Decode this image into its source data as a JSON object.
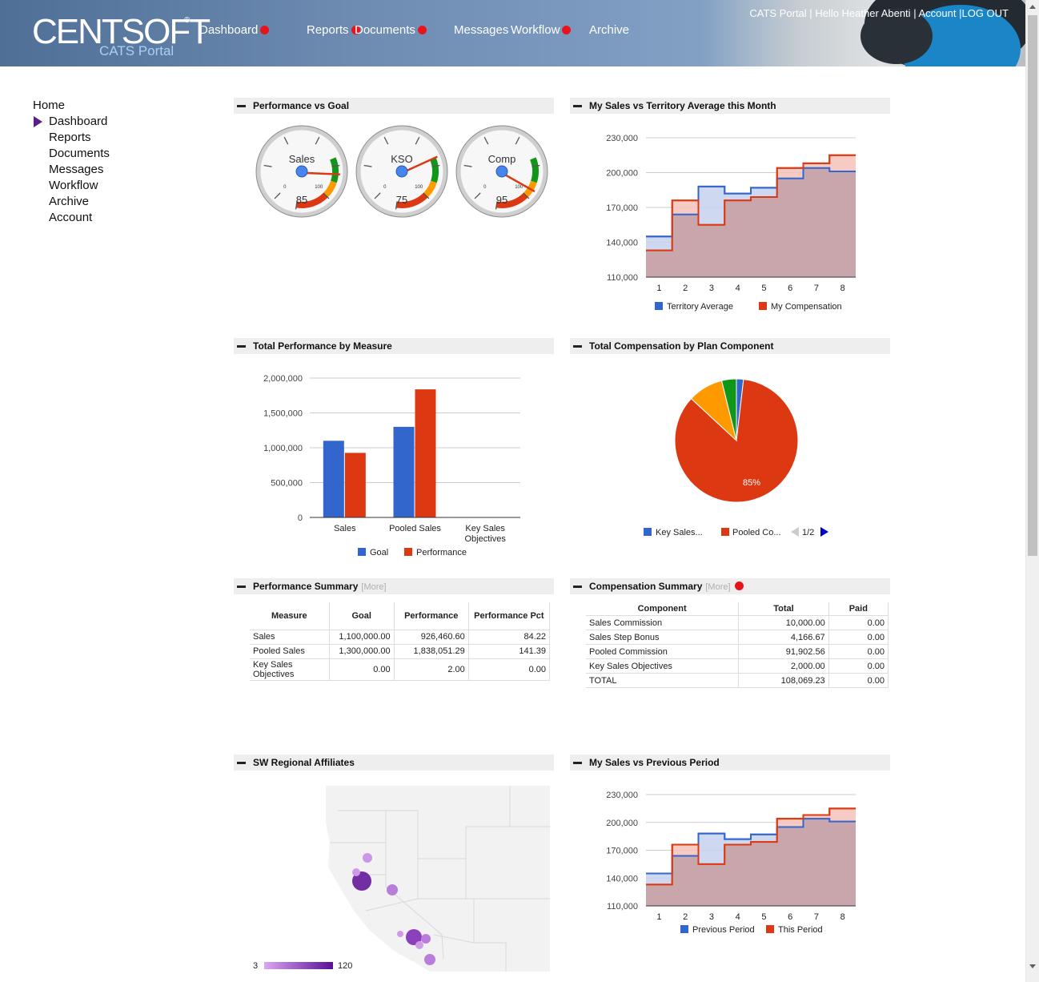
{
  "header": {
    "logo_main": "CENTSOFT",
    "logo_registered": "®",
    "logo_sub": "CATS Portal",
    "nav": [
      {
        "label": "Dashboard",
        "alert": true
      },
      {
        "label": "Reports",
        "alert": true
      },
      {
        "label": "Documents",
        "alert": true
      },
      {
        "label": "Messages",
        "alert": false
      },
      {
        "label": "Workflow",
        "alert": true
      },
      {
        "label": "Archive",
        "alert": false
      }
    ],
    "portal_link": "CATS Portal",
    "greeting": "Hello Heather Abenti",
    "account_link": "Account",
    "logout_link": "LOG OUT",
    "separator": "|"
  },
  "sidebar": {
    "items": [
      {
        "label": "Home"
      },
      {
        "label": "Dashboard"
      },
      {
        "label": "Reports"
      },
      {
        "label": "Documents"
      },
      {
        "label": "Messages"
      },
      {
        "label": "Workflow"
      },
      {
        "label": "Archive"
      },
      {
        "label": "Account"
      }
    ]
  },
  "colors": {
    "blue": "#3366cc",
    "red": "#dc3912",
    "orange": "#ff9900",
    "green": "#109618",
    "alert": "#e8141b",
    "area_blue": "#c5d2ef",
    "area_red": "#f3c2b8",
    "area_overlap": "#c6a4ab"
  },
  "gauges": {
    "title": "Performance vs Goal",
    "tick_max_label": "100",
    "tick_min_label": "0",
    "items": [
      {
        "label": "Sales",
        "value": 85
      },
      {
        "label": "KSO",
        "value": 75
      },
      {
        "label": "Comp",
        "value": 95
      }
    ]
  },
  "territory_chart": {
    "title": "My Sales vs Territory Average this Month",
    "chart_data": {
      "type": "area",
      "x": [
        1,
        2,
        3,
        4,
        5,
        6,
        7,
        8
      ],
      "ylim": [
        110000,
        230000
      ],
      "yticks": [
        "110,000",
        "140,000",
        "170,000",
        "200,000",
        "230,000"
      ],
      "ytick_values": [
        110000,
        140000,
        170000,
        200000,
        230000
      ],
      "series": [
        {
          "name": "Territory Average",
          "values": [
            145000,
            164000,
            188000,
            182000,
            187000,
            195000,
            204000,
            201000
          ]
        },
        {
          "name": "My Compensation",
          "values": [
            133000,
            176000,
            155000,
            176000,
            179000,
            204000,
            208000,
            215000
          ]
        }
      ],
      "legend": "bottom"
    }
  },
  "measure_chart": {
    "title": "Total Performance by Measure",
    "chart_data": {
      "type": "bar",
      "categories": [
        "Sales",
        "Pooled Sales",
        "Key Sales Objectives"
      ],
      "ylim": [
        0,
        2000000
      ],
      "yticks": [
        "0",
        "500,000",
        "1,000,000",
        "1,500,000",
        "2,000,000"
      ],
      "ytick_values": [
        0,
        500000,
        1000000,
        1500000,
        2000000
      ],
      "series": [
        {
          "name": "Goal",
          "values": [
            1100000,
            1300000,
            0
          ]
        },
        {
          "name": "Performance",
          "values": [
            926460.6,
            1838051.29,
            2
          ]
        }
      ],
      "legend": "bottom"
    }
  },
  "comp_pie": {
    "title": "Total Compensation by Plan Component",
    "chart_data": {
      "type": "pie",
      "slices": [
        {
          "name": "Key Sales...",
          "value": 2000
        },
        {
          "name": "Pooled Co...",
          "value": 91902.56
        },
        {
          "name": "Sales Commission",
          "value": 10000
        },
        {
          "name": "Sales Step Bonus",
          "value": 4166.67
        }
      ],
      "slice_label": "85%",
      "legend_page": "1/2",
      "legend": "bottom"
    }
  },
  "perf_summary": {
    "title": "Performance Summary",
    "more": "[More]",
    "columns": [
      "Measure",
      "Goal",
      "Performance",
      "Performance Pct"
    ],
    "rows": [
      [
        "Sales",
        "1,100,000.00",
        "926,460.60",
        "84.22"
      ],
      [
        "Pooled Sales",
        "1,300,000.00",
        "1,838,051.29",
        "141.39"
      ],
      [
        "Key Sales Objectives",
        "0.00",
        "2.00",
        "0.00"
      ]
    ]
  },
  "comp_summary": {
    "title": "Compensation Summary",
    "more": "[More]",
    "columns": [
      "Component",
      "Total",
      "Paid"
    ],
    "rows": [
      [
        "Sales Commission",
        "10,000.00",
        "0.00"
      ],
      [
        "Sales Step Bonus",
        "4,166.67",
        "0.00"
      ],
      [
        "Pooled Commission",
        "91,902.56",
        "0.00"
      ],
      [
        "Key Sales Objectives",
        "2,000.00",
        "0.00"
      ],
      [
        "TOTAL",
        "108,069.23",
        "0.00"
      ]
    ]
  },
  "affiliates_map": {
    "title": "SW Regional Affiliates",
    "legend_min": "3",
    "legend_max": "120"
  },
  "previous_chart": {
    "title": "My Sales vs Previous Period",
    "chart_data": {
      "type": "area",
      "x": [
        1,
        2,
        3,
        4,
        5,
        6,
        7,
        8
      ],
      "ylim": [
        110000,
        230000
      ],
      "yticks": [
        "110,000",
        "140,000",
        "170,000",
        "200,000",
        "230,000"
      ],
      "ytick_values": [
        110000,
        140000,
        170000,
        200000,
        230000
      ],
      "series": [
        {
          "name": "Previous Period",
          "values": [
            145000,
            164000,
            188000,
            182000,
            187000,
            195000,
            204000,
            201000
          ]
        },
        {
          "name": "This Period",
          "values": [
            133000,
            176000,
            155000,
            176000,
            179000,
            204000,
            208000,
            215000
          ]
        }
      ],
      "legend": "bottom"
    }
  }
}
